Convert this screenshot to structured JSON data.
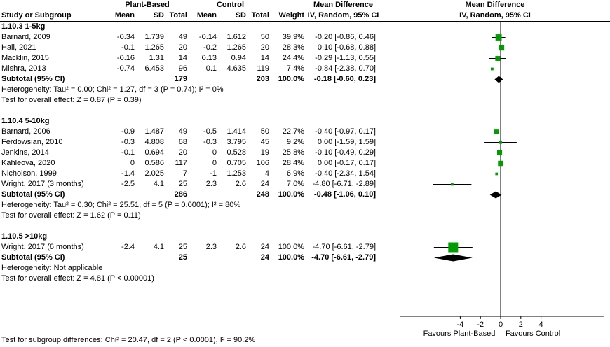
{
  "header": {
    "study_col": "Study or Subgroup",
    "treatment_group": "Plant-Based",
    "control_group": "Control",
    "mean": "Mean",
    "sd": "SD",
    "total": "Total",
    "weight": "Weight",
    "md_title": "Mean Difference",
    "md_method": "IV, Random, 95% CI"
  },
  "chart_data": {
    "type": "forest",
    "effect_measure": "Mean Difference",
    "method": "IV, Random, 95% CI",
    "axis": {
      "ticks": [
        -4,
        -2,
        0,
        2,
        4
      ],
      "range": [
        -10,
        10.2
      ],
      "label_left": "Favours Plant-Based",
      "label_right": "Favours Control"
    },
    "colors": {
      "square": "#009c00",
      "diamond": "#000000",
      "line": "#000000"
    },
    "subgroups": [
      {
        "title": "1.10.3 1-5kg",
        "studies": [
          {
            "label": "Barnard, 2009",
            "mean1": "-0.34",
            "sd1": "1.739",
            "n1": "49",
            "mean2": "-0.14",
            "sd2": "1.612",
            "n2": "50",
            "weight": "39.9%",
            "weight_pct": 39.9,
            "ci_text": "-0.20 [-0.86, 0.46]",
            "md": -0.2,
            "lo": -0.86,
            "hi": 0.46
          },
          {
            "label": "Hall, 2021",
            "mean1": "-0.1",
            "sd1": "1.265",
            "n1": "20",
            "mean2": "-0.2",
            "sd2": "1.265",
            "n2": "20",
            "weight": "28.3%",
            "weight_pct": 28.3,
            "ci_text": "0.10 [-0.68, 0.88]",
            "md": 0.1,
            "lo": -0.68,
            "hi": 0.88
          },
          {
            "label": "Macklin, 2015",
            "mean1": "-0.16",
            "sd1": "1.31",
            "n1": "14",
            "mean2": "0.13",
            "sd2": "0.94",
            "n2": "14",
            "weight": "24.4%",
            "weight_pct": 24.4,
            "ci_text": "-0.29 [-1.13, 0.55]",
            "md": -0.29,
            "lo": -1.13,
            "hi": 0.55
          },
          {
            "label": "Mishra, 2013",
            "mean1": "-0.74",
            "sd1": "6.453",
            "n1": "96",
            "mean2": "0.1",
            "sd2": "4.635",
            "n2": "119",
            "weight": "7.4%",
            "weight_pct": 7.4,
            "ci_text": "-0.84 [-2.38, 0.70]",
            "md": -0.84,
            "lo": -2.38,
            "hi": 0.7
          }
        ],
        "subtotal": {
          "label": "Subtotal (95% CI)",
          "n1": "179",
          "n2": "203",
          "weight": "100.0%",
          "ci_text": "-0.18 [-0.60, 0.23]",
          "md": -0.18,
          "lo": -0.6,
          "hi": 0.23
        },
        "heterogeneity": "Heterogeneity: Tau² = 0.00; Chi² = 1.27, df = 3 (P = 0.74); I² = 0%",
        "overall_effect": "Test for overall effect: Z = 0.87 (P = 0.39)"
      },
      {
        "title": "1.10.4 5-10kg",
        "studies": [
          {
            "label": "Barnard, 2006",
            "mean1": "-0.9",
            "sd1": "1.487",
            "n1": "49",
            "mean2": "-0.5",
            "sd2": "1.414",
            "n2": "50",
            "weight": "22.7%",
            "weight_pct": 22.7,
            "ci_text": "-0.40 [-0.97, 0.17]",
            "md": -0.4,
            "lo": -0.97,
            "hi": 0.17
          },
          {
            "label": "Ferdowsian, 2010",
            "mean1": "-0.3",
            "sd1": "4.808",
            "n1": "68",
            "mean2": "-0.3",
            "sd2": "3.795",
            "n2": "45",
            "weight": "9.2%",
            "weight_pct": 9.2,
            "ci_text": "0.00 [-1.59, 1.59]",
            "md": 0.0,
            "lo": -1.59,
            "hi": 1.59
          },
          {
            "label": "Jenkins, 2014",
            "mean1": "-0.1",
            "sd1": "0.694",
            "n1": "20",
            "mean2": "0",
            "sd2": "0.528",
            "n2": "19",
            "weight": "25.8%",
            "weight_pct": 25.8,
            "ci_text": "-0.10 [-0.49, 0.29]",
            "md": -0.1,
            "lo": -0.49,
            "hi": 0.29
          },
          {
            "label": "Kahleova, 2020",
            "mean1": "0",
            "sd1": "0.586",
            "n1": "117",
            "mean2": "0",
            "sd2": "0.705",
            "n2": "106",
            "weight": "28.4%",
            "weight_pct": 28.4,
            "ci_text": "0.00 [-0.17, 0.17]",
            "md": 0.0,
            "lo": -0.17,
            "hi": 0.17
          },
          {
            "label": "Nicholson, 1999",
            "mean1": "-1.4",
            "sd1": "2.025",
            "n1": "7",
            "mean2": "-1",
            "sd2": "1.253",
            "n2": "4",
            "weight": "6.9%",
            "weight_pct": 6.9,
            "ci_text": "-0.40 [-2.34, 1.54]",
            "md": -0.4,
            "lo": -2.34,
            "hi": 1.54
          },
          {
            "label": "Wright, 2017 (3 months)",
            "mean1": "-2.5",
            "sd1": "4.1",
            "n1": "25",
            "mean2": "2.3",
            "sd2": "2.6",
            "n2": "24",
            "weight": "7.0%",
            "weight_pct": 7.0,
            "ci_text": "-4.80 [-6.71, -2.89]",
            "md": -4.8,
            "lo": -6.71,
            "hi": -2.89
          }
        ],
        "subtotal": {
          "label": "Subtotal (95% CI)",
          "n1": "286",
          "n2": "248",
          "weight": "100.0%",
          "ci_text": "-0.48 [-1.06, 0.10]",
          "md": -0.48,
          "lo": -1.06,
          "hi": 0.1
        },
        "heterogeneity": "Heterogeneity: Tau² = 0.30; Chi² = 25.51, df = 5 (P = 0.0001); I² = 80%",
        "overall_effect": "Test for overall effect: Z = 1.62 (P = 0.11)"
      },
      {
        "title": "1.10.5 >10kg",
        "studies": [
          {
            "label": "Wright, 2017 (6 months)",
            "mean1": "-2.4",
            "sd1": "4.1",
            "n1": "25",
            "mean2": "2.3",
            "sd2": "2.6",
            "n2": "24",
            "weight": "100.0%",
            "weight_pct": 100.0,
            "ci_text": "-4.70 [-6.61, -2.79]",
            "md": -4.7,
            "lo": -6.61,
            "hi": -2.79
          }
        ],
        "subtotal": {
          "label": "Subtotal (95% CI)",
          "n1": "25",
          "n2": "24",
          "weight": "100.0%",
          "ci_text": "-4.70 [-6.61, -2.79]",
          "md": -4.7,
          "lo": -6.61,
          "hi": -2.79
        },
        "heterogeneity": "Heterogeneity: Not applicable",
        "overall_effect": "Test for overall effect: Z = 4.81 (P < 0.00001)"
      }
    ],
    "footer": "Test for subgroup differences: Chi² = 20.47, df = 2 (P < 0.0001), I² = 90.2%"
  }
}
